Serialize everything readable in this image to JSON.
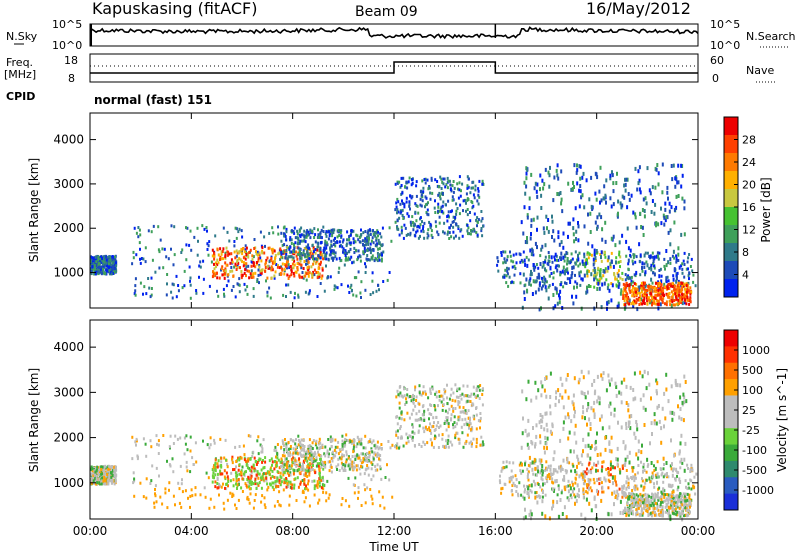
{
  "header": {
    "station": "Kapuskasing (fitACF)",
    "beam": "Beam 09",
    "date": "16/May/2012"
  },
  "panels": {
    "nsky_label": "N.Sky",
    "nsearch_label": "N.Search",
    "freq_label": "Freq.",
    "freq_unit": "[MHz]",
    "nave_label": "Nave",
    "cpid_label": "CPID",
    "cpid_text": "normal (fast) 151",
    "noise_ticks_left": [
      "10^5",
      "10^0"
    ],
    "noise_ticks_right": [
      "10^5",
      "10^0"
    ],
    "freq_ticks": [
      "18",
      "8"
    ],
    "nave_ticks": [
      "60",
      "0"
    ]
  },
  "colors": {
    "power_scale": [
      "#0022ee",
      "#1e4bb8",
      "#2f7a8a",
      "#3fa05a",
      "#46c232",
      "#c8c840",
      "#ffb000",
      "#ff7a00",
      "#ff4000",
      "#ee0000"
    ],
    "velocity_scale": [
      "#1a2fd8",
      "#2a5cc0",
      "#2f8a6e",
      "#3aaa3a",
      "#6ad23a",
      "#bdbdbd",
      "#bdbdbd",
      "#ffa000",
      "#ff7000",
      "#ff3000",
      "#ee0000"
    ]
  },
  "chart_data": [
    {
      "type": "heatmap",
      "quantity": "Power",
      "title": "",
      "xlabel": "Time UT",
      "ylabel": "Slant Range [km]",
      "xlim": [
        "00:00",
        "24:00"
      ],
      "ylim": [
        200,
        4600
      ],
      "x_ticks": [
        "00:00",
        "04:00",
        "08:00",
        "12:00",
        "16:00",
        "20:00",
        "00:00"
      ],
      "y_ticks": [
        "1000",
        "2000",
        "3000",
        "4000"
      ],
      "colorbar_label": "Power [dB]",
      "colorbar_ticks": [
        "28",
        "24",
        "20",
        "16",
        "12",
        "8",
        "4"
      ],
      "colorbar_range": [
        0,
        32
      ]
    },
    {
      "type": "heatmap",
      "quantity": "Velocity",
      "title": "",
      "xlabel": "Time UT",
      "ylabel": "Slant Range [km]",
      "xlim": [
        "00:00",
        "24:00"
      ],
      "ylim": [
        200,
        4600
      ],
      "x_ticks": [
        "00:00",
        "04:00",
        "08:00",
        "12:00",
        "16:00",
        "20:00",
        "00:00"
      ],
      "y_ticks": [
        "1000",
        "2000",
        "3000",
        "4000"
      ],
      "colorbar_label": "Velocity [m s^-1]",
      "colorbar_ticks": [
        "1000",
        "500",
        "100",
        "25",
        "-25",
        "-100",
        "-500",
        "-1000"
      ]
    }
  ]
}
